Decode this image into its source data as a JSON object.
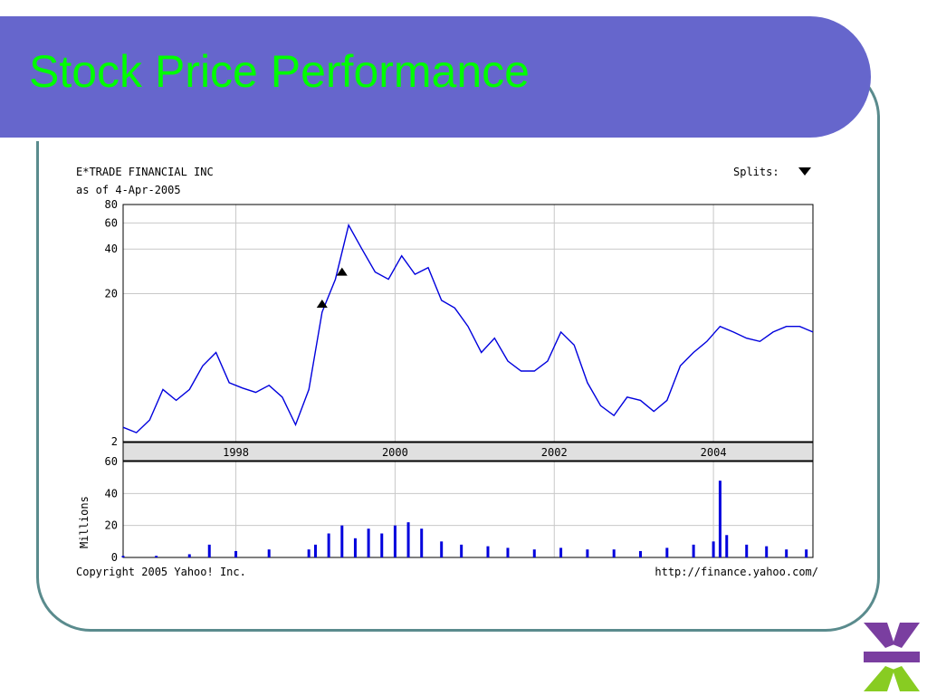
{
  "slide": {
    "title": "Stock Price Performance"
  },
  "chart_data": {
    "type": "line",
    "company": "E*TRADE FINANCIAL INC",
    "as_of": "as of 4-Apr-2005",
    "splits_label": "Splits:",
    "price_axis": {
      "scale": "log",
      "ticks": [
        2,
        20,
        40,
        60,
        80
      ],
      "ylim": [
        2,
        80
      ]
    },
    "volume_axis": {
      "label": "Millions",
      "ticks": [
        0,
        20,
        40,
        60
      ],
      "ylim": [
        0,
        60
      ]
    },
    "x_axis": {
      "ticks": [
        "1998",
        "2000",
        "2002",
        "2004"
      ],
      "range": [
        "1996-08",
        "2005-04"
      ]
    },
    "price_series": {
      "x": [
        "1996-08",
        "1996-10",
        "1996-12",
        "1997-02",
        "1997-04",
        "1997-06",
        "1997-08",
        "1997-10",
        "1997-12",
        "1998-02",
        "1998-04",
        "1998-06",
        "1998-08",
        "1998-10",
        "1998-12",
        "1999-02",
        "1999-04",
        "1999-06",
        "1999-08",
        "1999-10",
        "1999-12",
        "2000-02",
        "2000-04",
        "2000-06",
        "2000-08",
        "2000-10",
        "2000-12",
        "2001-02",
        "2001-04",
        "2001-06",
        "2001-08",
        "2001-10",
        "2001-12",
        "2002-02",
        "2002-04",
        "2002-06",
        "2002-08",
        "2002-10",
        "2002-12",
        "2003-02",
        "2003-04",
        "2003-06",
        "2003-08",
        "2003-10",
        "2003-12",
        "2004-02",
        "2004-04",
        "2004-06",
        "2004-08",
        "2004-10",
        "2004-12",
        "2005-02",
        "2005-04"
      ],
      "y": [
        2.5,
        2.3,
        2.8,
        4.5,
        3.8,
        4.5,
        6.5,
        8.0,
        5.0,
        4.6,
        4.3,
        4.8,
        4.0,
        2.6,
        4.5,
        15,
        25,
        58,
        40,
        28,
        25,
        36,
        27,
        30,
        18,
        16,
        12,
        8,
        10,
        7,
        6,
        6,
        7,
        11,
        9,
        5,
        3.5,
        3.0,
        4.0,
        3.8,
        3.2,
        3.8,
        6.5,
        8.0,
        9.5,
        12,
        11,
        10,
        9.5,
        11,
        12,
        12,
        11
      ]
    },
    "split_markers": [
      {
        "x": "1999-02",
        "y": 17
      },
      {
        "x": "1999-05",
        "y": 28
      }
    ],
    "volume_series": {
      "x": [
        "1996-08",
        "1997-01",
        "1997-06",
        "1997-09",
        "1998-01",
        "1998-06",
        "1998-12",
        "1999-01",
        "1999-03",
        "1999-05",
        "1999-07",
        "1999-09",
        "1999-11",
        "2000-01",
        "2000-03",
        "2000-05",
        "2000-08",
        "2000-11",
        "2001-03",
        "2001-06",
        "2001-10",
        "2002-02",
        "2002-06",
        "2002-10",
        "2003-02",
        "2003-06",
        "2003-10",
        "2004-01",
        "2004-02",
        "2004-03",
        "2004-06",
        "2004-09",
        "2004-12",
        "2005-03"
      ],
      "y": [
        1,
        1,
        2,
        8,
        4,
        5,
        5,
        8,
        15,
        20,
        12,
        18,
        15,
        20,
        22,
        18,
        10,
        8,
        7,
        6,
        5,
        6,
        5,
        5,
        4,
        6,
        8,
        10,
        48,
        14,
        8,
        7,
        5,
        5
      ]
    },
    "footer_left": "Copyright 2005 Yahoo! Inc.",
    "footer_right": "http://finance.yahoo.com/"
  }
}
